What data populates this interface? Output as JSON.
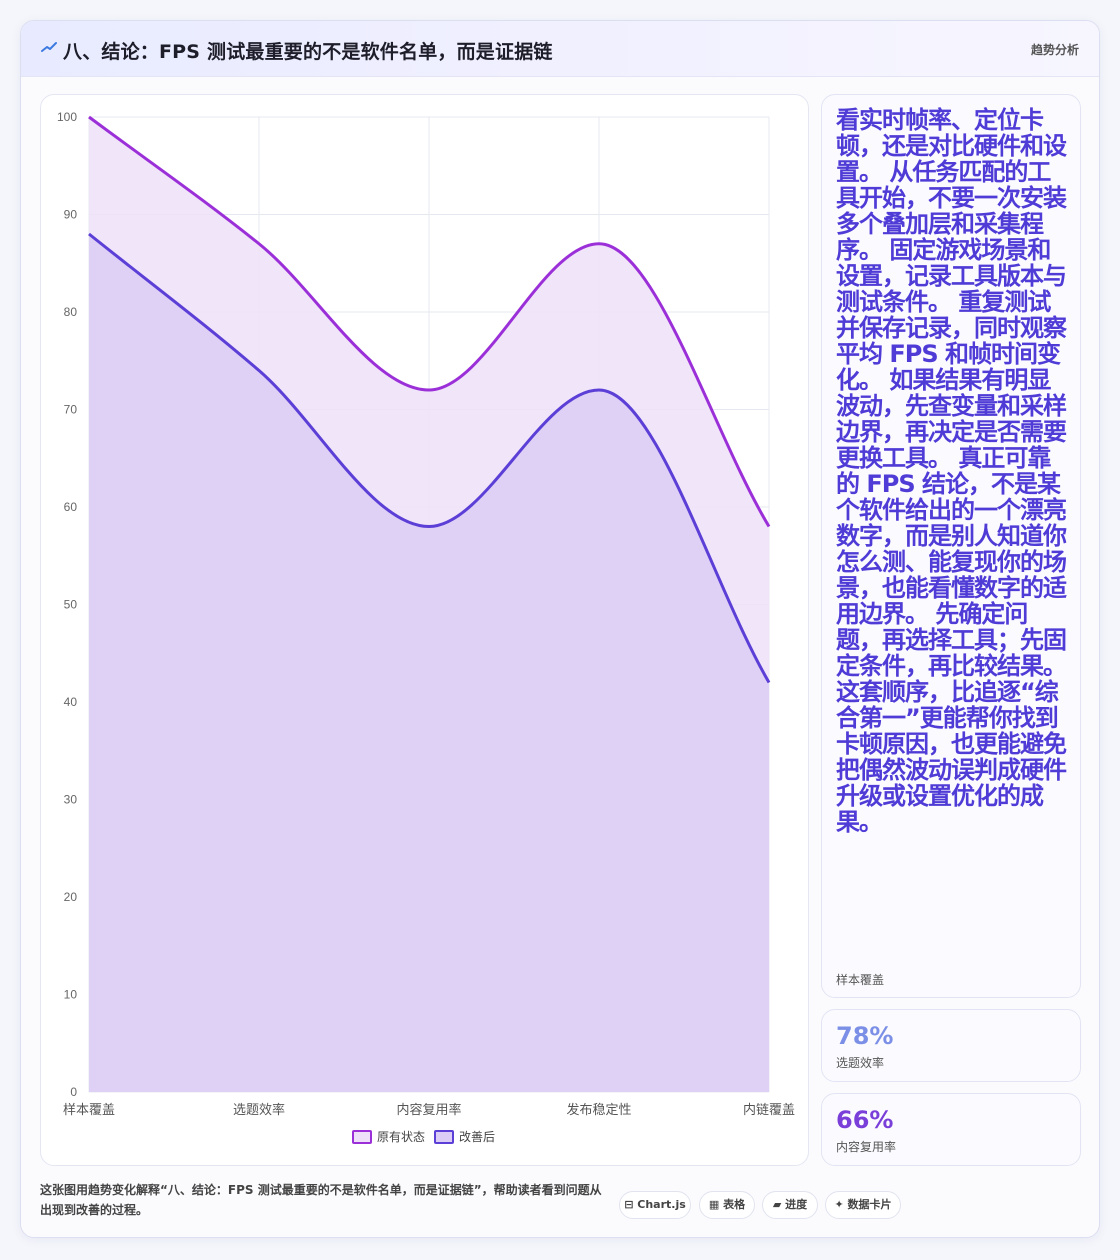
{
  "header": {
    "title": "八、结论：FPS 测试最重要的不是软件名单，而是证据链",
    "tag": "趋势分析",
    "icon": "trend-line-icon"
  },
  "side": {
    "summary_text": "看实时帧率、定位卡顿，还是对比硬件和设置。 从任务匹配的工具开始，不要一次安装多个叠加层和采集程序。 固定游戏场景和设置，记录工具版本与测试条件。 重复测试并保存记录，同时观察平均 FPS 和帧时间变化。 如果结果有明显波动，先查变量和采样边界，再决定是否需要更换工具。 真正可靠的 FPS 结论，不是某个软件给出的一个漂亮数字，而是别人知道你怎么测、能复现你的场景，也能看懂数字的适用边界。 先确定问题，再选择工具；先固定条件，再比较结果。这套顺序，比追逐“综合第一”更能帮你找到卡顿原因，也更能避免把偶然波动误判成硬件升级或设置优化的成果。",
    "summary_caption": "样本覆盖",
    "kpis": [
      {
        "value": "78%",
        "label": "选题效率",
        "color": "#7b8fe6"
      },
      {
        "value": "66%",
        "label": "内容复用率",
        "color": "#7b3fd9"
      }
    ]
  },
  "footer": {
    "description": "这张图用趋势变化解释“八、结论：FPS 测试最重要的不是软件名单，而是证据链”，帮助读者看到问题从出现到改善的过程。",
    "tags": [
      {
        "label": "Chart.js",
        "icon": "chart-icon",
        "glyph": "⊟"
      },
      {
        "label": "表格",
        "icon": "table-icon",
        "glyph": "▦"
      },
      {
        "label": "进度",
        "icon": "progress-icon",
        "glyph": "▰"
      },
      {
        "label": "数据卡片",
        "icon": "card-icon",
        "glyph": "✦"
      }
    ]
  },
  "chart_data": {
    "type": "area",
    "categories": [
      "样本覆盖",
      "选题效率",
      "内容复用率",
      "发布稳定性",
      "内链覆盖"
    ],
    "series": [
      {
        "name": "原有状态",
        "values": [
          100,
          87,
          72,
          87,
          58
        ],
        "color": "#9b30d9",
        "fill": "#eee0f8"
      },
      {
        "name": "改善后",
        "values": [
          88,
          74,
          58,
          72,
          42
        ],
        "color": "#5b3fd6",
        "fill": "#dccdf6"
      }
    ],
    "ylim": [
      0,
      100
    ],
    "yticks": [
      0,
      10,
      20,
      30,
      40,
      50,
      60,
      70,
      80,
      90,
      100
    ],
    "grid": true,
    "legend": "bottom"
  }
}
